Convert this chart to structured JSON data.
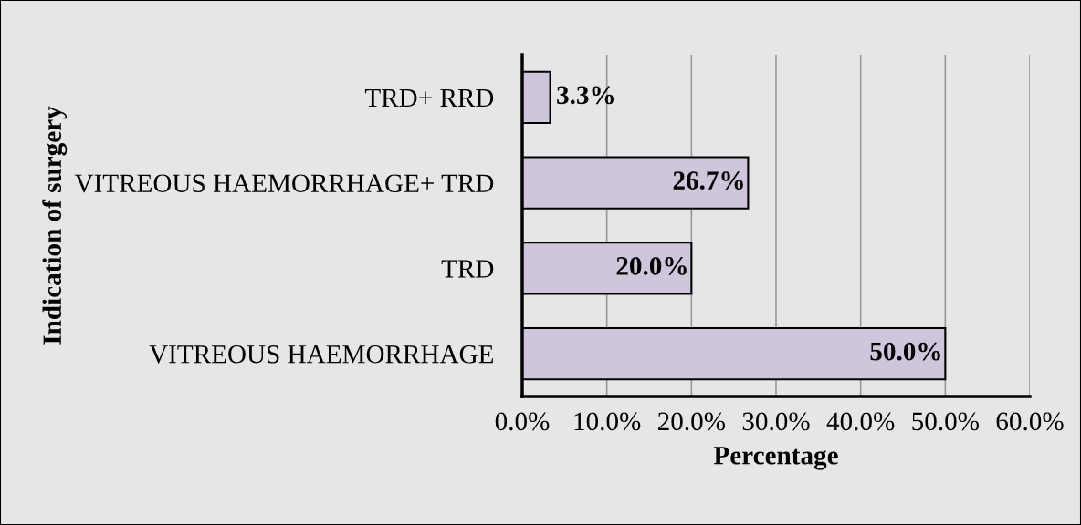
{
  "chart_data": {
    "type": "bar",
    "orientation": "horizontal",
    "categories": [
      "TRD+ RRD",
      "VITREOUS HAEMORRHAGE+ TRD",
      "TRD",
      "VITREOUS HAEMORRHAGE"
    ],
    "values": [
      3.3,
      26.7,
      20.0,
      50.0
    ],
    "value_labels": [
      "3.3%",
      "26.7%",
      "20.0%",
      "50.0%"
    ],
    "color": "#d0c6dc",
    "xlim": [
      0,
      60
    ],
    "xticks": [
      {
        "value": 0,
        "label": "0.0%"
      },
      {
        "value": 10,
        "label": "10.0%"
      },
      {
        "value": 20,
        "label": "20.0%"
      },
      {
        "value": 30,
        "label": "30.0%"
      },
      {
        "value": 40,
        "label": "40.0%"
      },
      {
        "value": 50,
        "label": "50.0%"
      },
      {
        "value": 60,
        "label": "60.0%"
      }
    ],
    "xlabel": "Percentage",
    "ylabel": "Indication of surgery",
    "grid": "x"
  }
}
